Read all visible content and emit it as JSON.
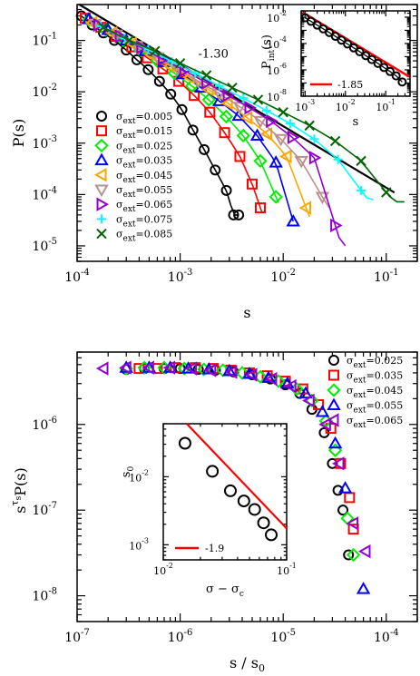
{
  "chart_data": [
    {
      "type": "scatter",
      "log_x": true,
      "log_y": true,
      "xlabel": "s",
      "ylabel": "P(s)",
      "xlim": [
        0.0001,
        0.2
      ],
      "ylim": [
        5e-06,
        0.5
      ],
      "x_ticks": [
        {
          "base": "10",
          "exp": "-4"
        },
        {
          "base": "10",
          "exp": "-3"
        },
        {
          "base": "10",
          "exp": "-2"
        },
        {
          "base": "10",
          "exp": "-1"
        }
      ],
      "y_ticks": [
        {
          "base": "10",
          "exp": "-5"
        },
        {
          "base": "10",
          "exp": "-4"
        },
        {
          "base": "10",
          "exp": "-3"
        },
        {
          "base": "10",
          "exp": "-2"
        },
        {
          "base": "10",
          "exp": "-1"
        }
      ],
      "reference_line": {
        "label": "-1.30",
        "slope": -1.3
      },
      "legend_prefix": "σ",
      "legend_sub": "ext",
      "legend_position": "center-left",
      "series": [
        {
          "name": "=0.005",
          "color": "#000000",
          "marker": "circle",
          "smax": 0.0037,
          "x": [
            0.00011,
            0.00014,
            0.00018,
            0.00023,
            0.0003,
            0.00038,
            0.00049,
            0.00063,
            0.00081,
            0.00104,
            0.00133,
            0.00171,
            0.00219,
            0.00281,
            0.0033,
            0.0037
          ],
          "y": [
            0.3,
            0.2,
            0.14,
            0.1,
            0.065,
            0.042,
            0.027,
            0.016,
            0.009,
            0.0045,
            0.0018,
            0.00075,
            0.0003,
            0.00012,
            4e-05,
            4e-05
          ]
        },
        {
          "name": "=0.015",
          "color": "#ff0000",
          "marker": "square",
          "smax": 0.0062,
          "x": [
            0.00012,
            0.00017,
            0.00024,
            0.00034,
            0.00048,
            0.00068,
            0.00097,
            0.00137,
            0.00194,
            0.0027,
            0.0038,
            0.005,
            0.006
          ],
          "y": [
            0.27,
            0.18,
            0.12,
            0.075,
            0.046,
            0.028,
            0.016,
            0.0085,
            0.004,
            0.0016,
            0.00055,
            0.00016,
            5.5e-05
          ]
        },
        {
          "name": "=0.025",
          "color": "#00ee00",
          "marker": "diamond",
          "smax": 0.009,
          "x": [
            0.00013,
            0.00019,
            0.00028,
            0.00041,
            0.0006,
            0.00088,
            0.0013,
            0.0019,
            0.0028,
            0.0041,
            0.006,
            0.0085
          ],
          "y": [
            0.25,
            0.16,
            0.1,
            0.065,
            0.04,
            0.023,
            0.013,
            0.007,
            0.0033,
            0.0014,
            0.00045,
            9e-05
          ]
        },
        {
          "name": "=0.035",
          "color": "#0000ff",
          "marker": "triangle-up",
          "smax": 0.0125,
          "x": [
            0.00013,
            0.0002,
            0.0003,
            0.00046,
            0.0007,
            0.00106,
            0.0016,
            0.0024,
            0.0037,
            0.0056,
            0.0085,
            0.0125
          ],
          "y": [
            0.26,
            0.16,
            0.1,
            0.062,
            0.038,
            0.022,
            0.012,
            0.0066,
            0.0034,
            0.0014,
            0.00042,
            3e-05
          ]
        },
        {
          "name": "=0.045",
          "color": "#ffa500",
          "marker": "triangle-left",
          "smax": 0.018,
          "x": [
            0.00014,
            0.00022,
            0.00034,
            0.00052,
            0.0008,
            0.00124,
            0.0019,
            0.0029,
            0.0045,
            0.007,
            0.0108,
            0.0167
          ],
          "y": [
            0.22,
            0.14,
            0.087,
            0.053,
            0.032,
            0.019,
            0.011,
            0.006,
            0.0031,
            0.0015,
            0.00055,
            5.5e-05
          ]
        },
        {
          "name": "=0.055",
          "color": "#bc8f8f",
          "marker": "triangle-down",
          "smax": 0.028,
          "x": [
            0.00015,
            0.00024,
            0.00038,
            0.0006,
            0.00095,
            0.0015,
            0.0024,
            0.0038,
            0.006,
            0.0095,
            0.015,
            0.024
          ],
          "y": [
            0.21,
            0.13,
            0.078,
            0.047,
            0.028,
            0.016,
            0.0092,
            0.0051,
            0.0027,
            0.0012,
            0.00045,
            9e-05
          ]
        },
        {
          "name": "=0.065",
          "color": "#9400d3",
          "marker": "triangle-right",
          "smax": 0.04,
          "x": [
            0.00016,
            0.00026,
            0.00042,
            0.00068,
            0.0011,
            0.0018,
            0.0029,
            0.0047,
            0.0076,
            0.0123,
            0.02,
            0.032
          ],
          "y": [
            0.2,
            0.12,
            0.073,
            0.043,
            0.026,
            0.015,
            0.0086,
            0.0049,
            0.0027,
            0.0013,
            0.00052,
            2.5e-05
          ]
        },
        {
          "name": "=0.075",
          "color": "#00ffff",
          "marker": "plus",
          "smax": 0.075,
          "x": [
            0.00017,
            0.00029,
            0.00049,
            0.00083,
            0.0014,
            0.0024,
            0.0041,
            0.0069,
            0.0117,
            0.02,
            0.034,
            0.057
          ],
          "y": [
            0.19,
            0.11,
            0.067,
            0.039,
            0.023,
            0.013,
            0.0075,
            0.0043,
            0.0024,
            0.0012,
            0.00048,
            0.00012
          ]
        },
        {
          "name": "=0.085",
          "color": "#006400",
          "marker": "x",
          "smax": 0.15,
          "x": [
            0.00018,
            0.00032,
            0.00057,
            0.001,
            0.0018,
            0.0032,
            0.0057,
            0.01,
            0.018,
            0.032,
            0.057,
            0.1
          ],
          "y": [
            0.18,
            0.1,
            0.062,
            0.036,
            0.021,
            0.012,
            0.007,
            0.004,
            0.0022,
            0.0011,
            0.00045,
            0.00011
          ]
        }
      ]
    },
    {
      "type": "scatter",
      "inset_of": 0,
      "log_x": true,
      "log_y": true,
      "xlabel": "s",
      "ylabel": "P",
      "ylabel_sub": "int",
      "ylabel_suffix": "(s)",
      "xlim": [
        0.0008,
        0.4
      ],
      "ylim": [
        1e-08,
        0.03
      ],
      "x_ticks": [
        {
          "base": "10",
          "exp": "-3"
        },
        {
          "base": "10",
          "exp": "-2"
        },
        {
          "base": "10",
          "exp": "-1"
        }
      ],
      "y_ticks": [
        {
          "base": "10",
          "exp": "-8"
        },
        {
          "base": "10",
          "exp": "-6"
        },
        {
          "base": "10",
          "exp": "-4"
        },
        {
          "base": "10",
          "exp": "-2"
        }
      ],
      "reference_line": {
        "label": "-1.85",
        "slope": -1.85
      },
      "series": [
        {
          "name": "",
          "color": "#000000",
          "marker": "circle",
          "x": [
            0.001,
            0.00141,
            0.002,
            0.00282,
            0.004,
            0.00565,
            0.008,
            0.0113,
            0.016,
            0.0226,
            0.032,
            0.0452,
            0.064,
            0.0904,
            0.128,
            0.181,
            0.256
          ],
          "y": [
            0.009,
            0.0048,
            0.0025,
            0.0013,
            0.00068,
            0.00035,
            0.00018,
            9.2e-05,
            4.7e-05,
            2.4e-05,
            1.2e-05,
            6.1e-06,
            3.1e-06,
            1.5e-06,
            7.5e-07,
            3.5e-07,
            1.2e-07
          ]
        }
      ]
    },
    {
      "type": "scatter",
      "log_x": true,
      "log_y": true,
      "xlabel": "s / s",
      "xlabel_sub": "0",
      "ylabel": "s",
      "ylabel_sup": "τ",
      "ylabel_supsub": "s",
      "ylabel_suffix": "P(s)",
      "xlim": [
        1e-07,
        0.0002
      ],
      "ylim": [
        5e-09,
        7e-06
      ],
      "x_ticks": [
        {
          "base": "10",
          "exp": "-7"
        },
        {
          "base": "10",
          "exp": "-6"
        },
        {
          "base": "10",
          "exp": "-5"
        },
        {
          "base": "10",
          "exp": "-4"
        }
      ],
      "y_ticks": [
        {
          "base": "10",
          "exp": "-8"
        },
        {
          "base": "10",
          "exp": "-7"
        },
        {
          "base": "10",
          "exp": "-6"
        }
      ],
      "legend_prefix": "σ",
      "legend_sub": "ext",
      "legend_position": "top-right",
      "series": [
        {
          "name": "=0.025",
          "color": "#000000",
          "marker": "circle",
          "x": [
            3e-07,
            4.5e-07,
            7e-07,
            1e-06,
            1.5e-06,
            2.2e-06,
            3.3e-06,
            5e-06,
            7.5e-06,
            1.05e-05,
            1.45e-05,
            1.9e-05,
            2.5e-05,
            3e-05,
            3.4e-05,
            3.8e-05,
            4.3e-05
          ],
          "y": [
            4.4e-06,
            4.5e-06,
            4.5e-06,
            4.5e-06,
            4.4e-06,
            4.3e-06,
            4.1e-06,
            3.8e-06,
            3.4e-06,
            2.9e-06,
            2.3e-06,
            1.5e-06,
            8e-07,
            3.5e-07,
            1.7e-07,
            1e-07,
            3e-08
          ]
        },
        {
          "name": "=0.035",
          "color": "#ff0000",
          "marker": "square",
          "x": [
            4e-07,
            6e-07,
            9e-07,
            1.4e-06,
            2.1e-06,
            3.1e-06,
            4.7e-06,
            7e-06,
            1.05e-05,
            1.55e-05,
            2.2e-05,
            2.9e-05,
            3.6e-05,
            4.4e-05,
            4.8e-05
          ],
          "y": [
            4.5e-06,
            4.5e-06,
            4.6e-06,
            4.6e-06,
            4.5e-06,
            4.3e-06,
            4e-06,
            3.7e-06,
            3.2e-06,
            2.6e-06,
            1.7e-06,
            9e-07,
            3.5e-07,
            1.4e-07,
            6e-08
          ]
        },
        {
          "name": "=0.045",
          "color": "#00ee00",
          "marker": "diamond",
          "x": [
            3e-07,
            4.5e-07,
            7e-07,
            1.1e-06,
            1.7e-06,
            2.6e-06,
            4e-06,
            6e-06,
            9e-06,
            1.35e-05,
            1.9e-05,
            2.6e-05,
            3.2e-05,
            4.2e-05,
            4.8e-05
          ],
          "y": [
            4.5e-06,
            4.6e-06,
            4.6e-06,
            4.5e-06,
            4.4e-06,
            4.3e-06,
            4e-06,
            3.6e-06,
            3.2e-06,
            2.6e-06,
            1.9e-06,
            1.1e-06,
            5e-07,
            8e-08,
            3e-08
          ]
        },
        {
          "name": "=0.055",
          "color": "#0000ff",
          "marker": "triangle-up",
          "x": [
            3e-07,
            5e-07,
            8e-07,
            1.2e-06,
            1.9e-06,
            3e-06,
            4.7e-06,
            7.2e-06,
            1.1e-05,
            1.65e-05,
            2.4e-05,
            3.2e-05,
            4e-05,
            6e-05
          ],
          "y": [
            4.6e-06,
            4.6e-06,
            4.6e-06,
            4.5e-06,
            4.4e-06,
            4.2e-06,
            3.9e-06,
            3.5e-06,
            3e-06,
            2.3e-06,
            1.4e-06,
            6e-07,
            1.8e-07,
            1.2e-08
          ]
        },
        {
          "name": "=0.065",
          "color": "#9400d3",
          "marker": "triangle-left",
          "x": [
            1.8e-07,
            3e-07,
            5e-07,
            8e-07,
            1.3e-06,
            2e-06,
            3.2e-06,
            5e-06,
            7.8e-06,
            1.2e-05,
            1.8e-05,
            2.6e-05,
            3.5e-05,
            4.8e-05,
            6.3e-05
          ],
          "y": [
            4.5e-06,
            4.6e-06,
            4.6e-06,
            4.6e-06,
            4.5e-06,
            4.3e-06,
            4.1e-06,
            3.8e-06,
            3.4e-06,
            2.8e-06,
            1.9e-06,
            1e-06,
            3.5e-07,
            7e-08,
            3.3e-08
          ]
        }
      ]
    },
    {
      "type": "scatter",
      "inset_of": 2,
      "log_x": true,
      "log_y": true,
      "xlabel": "σ − σ",
      "xlabel_sub": "c",
      "ylabel": "s",
      "ylabel_sub": "0",
      "xlim": [
        0.01,
        0.1
      ],
      "ylim": [
        0.0006,
        0.06
      ],
      "x_ticks": [
        {
          "base": "10",
          "exp": "-2"
        },
        {
          "base": "10",
          "exp": "-1"
        }
      ],
      "y_ticks": [
        {
          "base": "10",
          "exp": "-3"
        },
        {
          "base": "10",
          "exp": "-2"
        }
      ],
      "reference_line": {
        "label": "-1.9",
        "slope": -1.9
      },
      "series": [
        {
          "name": "",
          "color": "#000000",
          "marker": "circle",
          "x": [
            0.015,
            0.025,
            0.035,
            0.045,
            0.055,
            0.065,
            0.075
          ],
          "y": [
            0.031,
            0.012,
            0.0062,
            0.0044,
            0.0033,
            0.0021,
            0.0014
          ]
        }
      ]
    }
  ]
}
